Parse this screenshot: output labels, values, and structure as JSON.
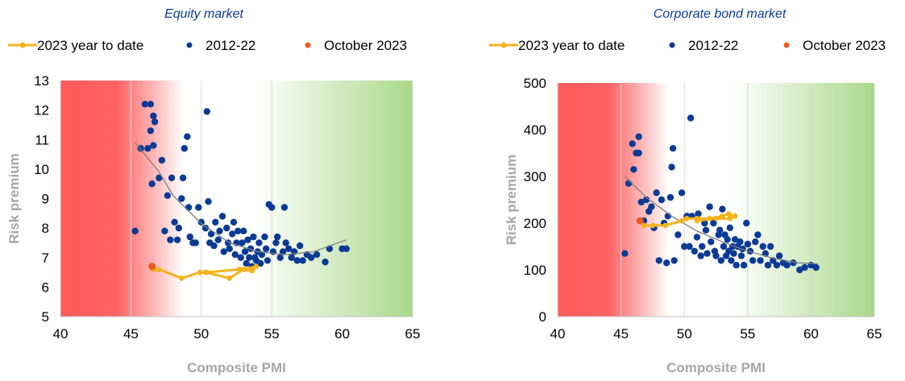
{
  "colors": {
    "ytd_line": "#f5b21c",
    "scatter": "#0b3a96",
    "october": "#ef5a1f",
    "trend": "#7f7f7f",
    "title": "#0b3a96",
    "axis_text": "#000000",
    "axis_title": "#a6a6a6",
    "grid": "#d9d9d9",
    "bg_red": "#ff5a5a",
    "bg_green": "#a9d88a"
  },
  "chart_data": [
    {
      "type": "scatter",
      "title": "Equity market",
      "xlabel": "Composite PMI",
      "ylabel": "Risk premium",
      "xlim": [
        40,
        65
      ],
      "ylim": [
        5,
        13
      ],
      "xticks": [
        "40",
        "45",
        "50",
        "55",
        "60",
        "65"
      ],
      "yticks": [
        "5",
        "6",
        "7",
        "8",
        "9",
        "10",
        "11",
        "12",
        "13"
      ],
      "legend_position": "top",
      "legend": [
        {
          "label": "2023 year to date",
          "kind": "line-marker",
          "color": "#f5b21c"
        },
        {
          "label": "2012-22",
          "kind": "marker",
          "color": "#0b3a96"
        },
        {
          "label": "October 2023",
          "kind": "marker",
          "color": "#ef5a1f"
        }
      ],
      "series": [
        {
          "name": "2012-22",
          "kind": "scatter",
          "points": [
            [
              45.3,
              7.9
            ],
            [
              45.7,
              10.7
            ],
            [
              46.0,
              12.2
            ],
            [
              46.2,
              10.7
            ],
            [
              46.4,
              12.2
            ],
            [
              46.4,
              11.3
            ],
            [
              46.6,
              11.8
            ],
            [
              46.7,
              11.6
            ],
            [
              46.5,
              9.5
            ],
            [
              46.6,
              10.8
            ],
            [
              47.0,
              9.7
            ],
            [
              47.2,
              10.3
            ],
            [
              47.4,
              7.9
            ],
            [
              47.6,
              9.1
            ],
            [
              47.8,
              7.6
            ],
            [
              47.9,
              9.7
            ],
            [
              48.1,
              8.2
            ],
            [
              48.3,
              7.6
            ],
            [
              48.4,
              8.0
            ],
            [
              48.6,
              9.0
            ],
            [
              48.8,
              10.7
            ],
            [
              48.7,
              9.7
            ],
            [
              49.0,
              11.1
            ],
            [
              49.1,
              8.7
            ],
            [
              49.2,
              7.7
            ],
            [
              49.4,
              7.5
            ],
            [
              49.6,
              7.5
            ],
            [
              49.8,
              8.7
            ],
            [
              50.0,
              8.2
            ],
            [
              50.3,
              8.0
            ],
            [
              50.4,
              11.95
            ],
            [
              50.5,
              8.9
            ],
            [
              50.6,
              7.5
            ],
            [
              50.7,
              7.8
            ],
            [
              50.9,
              7.4
            ],
            [
              51.0,
              8.2
            ],
            [
              51.2,
              7.6
            ],
            [
              51.3,
              7.9
            ],
            [
              51.5,
              8.4
            ],
            [
              51.6,
              7.2
            ],
            [
              51.8,
              8.0
            ],
            [
              51.9,
              7.5
            ],
            [
              52.0,
              7.3
            ],
            [
              52.2,
              7.8
            ],
            [
              52.3,
              8.2
            ],
            [
              52.4,
              7.1
            ],
            [
              52.5,
              7.5
            ],
            [
              52.6,
              7.9
            ],
            [
              52.8,
              7.0
            ],
            [
              52.9,
              7.5
            ],
            [
              53.0,
              7.9
            ],
            [
              53.1,
              7.2
            ],
            [
              53.2,
              6.8
            ],
            [
              53.3,
              7.6
            ],
            [
              53.4,
              7.0
            ],
            [
              53.5,
              7.3
            ],
            [
              53.6,
              6.7
            ],
            [
              53.7,
              7.7
            ],
            [
              53.8,
              7.0
            ],
            [
              53.9,
              6.9
            ],
            [
              54.0,
              7.2
            ],
            [
              54.1,
              7.5
            ],
            [
              54.2,
              6.8
            ],
            [
              54.3,
              7.1
            ],
            [
              54.5,
              7.7
            ],
            [
              54.6,
              7.3
            ],
            [
              54.7,
              6.9
            ],
            [
              54.8,
              8.8
            ],
            [
              55.0,
              8.7
            ],
            [
              55.1,
              7.2
            ],
            [
              55.3,
              7.5
            ],
            [
              55.4,
              7.7
            ],
            [
              55.6,
              7.0
            ],
            [
              55.8,
              7.2
            ],
            [
              55.9,
              8.7
            ],
            [
              56.0,
              7.5
            ],
            [
              56.2,
              7.3
            ],
            [
              56.4,
              7.0
            ],
            [
              56.6,
              7.2
            ],
            [
              56.8,
              6.9
            ],
            [
              57.0,
              7.4
            ],
            [
              57.2,
              6.9
            ],
            [
              57.5,
              7.1
            ],
            [
              57.8,
              7.0
            ],
            [
              58.2,
              7.1
            ],
            [
              58.8,
              6.85
            ],
            [
              59.1,
              7.3
            ],
            [
              60.0,
              7.3
            ],
            [
              60.3,
              7.3
            ]
          ]
        },
        {
          "name": "2023 year to date",
          "kind": "line",
          "points": [
            [
              46.6,
              6.6
            ],
            [
              47.0,
              6.6
            ],
            [
              48.6,
              6.3
            ],
            [
              49.9,
              6.5
            ],
            [
              50.3,
              6.5
            ],
            [
              52.0,
              6.3
            ],
            [
              53.0,
              6.6
            ],
            [
              53.9,
              6.7
            ],
            [
              53.6,
              6.55
            ],
            [
              52.7,
              6.6
            ],
            [
              50.4,
              6.5
            ]
          ]
        },
        {
          "name": "October 2023",
          "kind": "scatter",
          "points": [
            [
              46.5,
              6.7
            ]
          ]
        },
        {
          "name": "trend",
          "kind": "trend",
          "points": [
            [
              45.3,
              10.9
            ],
            [
              47.0,
              9.9
            ],
            [
              48.0,
              9.1
            ],
            [
              50.0,
              8.15
            ],
            [
              52.0,
              7.5
            ],
            [
              54.0,
              7.2
            ],
            [
              56.0,
              7.1
            ],
            [
              58.0,
              7.2
            ],
            [
              60.3,
              7.6
            ]
          ]
        }
      ]
    },
    {
      "type": "scatter",
      "title": "Corporate bond market",
      "xlabel": "Composite PMI",
      "ylabel": "Risk premium",
      "xlim": [
        40,
        65
      ],
      "ylim": [
        0,
        500
      ],
      "xticks": [
        "40",
        "45",
        "50",
        "55",
        "60",
        "65"
      ],
      "yticks": [
        "0",
        "100",
        "200",
        "300",
        "400",
        "500"
      ],
      "legend_position": "top",
      "legend": [
        {
          "label": "2023 year to date",
          "kind": "line-marker",
          "color": "#f5b21c"
        },
        {
          "label": "2012-22",
          "kind": "marker",
          "color": "#0b3a96"
        },
        {
          "label": "October 2023",
          "kind": "marker",
          "color": "#ef5a1f"
        }
      ],
      "series": [
        {
          "name": "2012-22",
          "kind": "scatter",
          "points": [
            [
              45.3,
              135
            ],
            [
              45.6,
              285
            ],
            [
              45.9,
              370
            ],
            [
              46.0,
              315
            ],
            [
              46.2,
              350
            ],
            [
              46.4,
              385
            ],
            [
              46.4,
              350
            ],
            [
              46.6,
              245
            ],
            [
              46.8,
              205
            ],
            [
              47.0,
              250
            ],
            [
              47.2,
              225
            ],
            [
              47.4,
              235
            ],
            [
              47.6,
              190
            ],
            [
              47.8,
              265
            ],
            [
              48.0,
              120
            ],
            [
              48.2,
              250
            ],
            [
              48.4,
              200
            ],
            [
              48.6,
              115
            ],
            [
              48.7,
              215
            ],
            [
              48.9,
              255
            ],
            [
              49.0,
              320
            ],
            [
              49.1,
              360
            ],
            [
              49.2,
              120
            ],
            [
              49.5,
              175
            ],
            [
              49.8,
              265
            ],
            [
              50.0,
              150
            ],
            [
              50.2,
              215
            ],
            [
              50.4,
              150
            ],
            [
              50.5,
              425
            ],
            [
              50.6,
              215
            ],
            [
              50.8,
              140
            ],
            [
              51.0,
              170
            ],
            [
              51.1,
              220
            ],
            [
              51.3,
              130
            ],
            [
              51.4,
              150
            ],
            [
              51.6,
              200
            ],
            [
              51.7,
              185
            ],
            [
              51.8,
              135
            ],
            [
              52.0,
              235
            ],
            [
              52.1,
              160
            ],
            [
              52.3,
              200
            ],
            [
              52.4,
              140
            ],
            [
              52.5,
              130
            ],
            [
              52.7,
              175
            ],
            [
              52.8,
              185
            ],
            [
              52.9,
              120
            ],
            [
              53.0,
              230
            ],
            [
              53.1,
              150
            ],
            [
              53.2,
              175
            ],
            [
              53.3,
              130
            ],
            [
              53.4,
              165
            ],
            [
              53.5,
              140
            ],
            [
              53.6,
              190
            ],
            [
              53.7,
              120
            ],
            [
              53.8,
              150
            ],
            [
              53.9,
              135
            ],
            [
              54.0,
              165
            ],
            [
              54.1,
              110
            ],
            [
              54.2,
              150
            ],
            [
              54.4,
              160
            ],
            [
              54.5,
              130
            ],
            [
              54.6,
              145
            ],
            [
              54.7,
              110
            ],
            [
              54.9,
              200
            ],
            [
              55.0,
              155
            ],
            [
              55.2,
              140
            ],
            [
              55.4,
              120
            ],
            [
              55.6,
              160
            ],
            [
              55.8,
              175
            ],
            [
              56.0,
              120
            ],
            [
              56.2,
              150
            ],
            [
              56.4,
              135
            ],
            [
              56.6,
              110
            ],
            [
              56.8,
              150
            ],
            [
              57.0,
              120
            ],
            [
              57.3,
              110
            ],
            [
              57.5,
              130
            ],
            [
              57.8,
              115
            ],
            [
              58.1,
              110
            ],
            [
              58.6,
              115
            ],
            [
              59.1,
              100
            ],
            [
              59.5,
              105
            ],
            [
              60.0,
              110
            ],
            [
              60.4,
              105
            ]
          ]
        },
        {
          "name": "2023 year to date",
          "kind": "line",
          "points": [
            [
              46.8,
              195
            ],
            [
              47.5,
              195
            ],
            [
              48.5,
              195
            ],
            [
              49.8,
              205
            ],
            [
              50.2,
              210
            ],
            [
              51.0,
              210
            ],
            [
              52.0,
              210
            ],
            [
              53.0,
              215
            ],
            [
              53.5,
              220
            ],
            [
              54.0,
              215
            ],
            [
              53.6,
              210
            ],
            [
              52.5,
              210
            ],
            [
              51.0,
              205
            ]
          ]
        },
        {
          "name": "October 2023",
          "kind": "scatter",
          "points": [
            [
              46.5,
              205
            ]
          ]
        },
        {
          "name": "trend",
          "kind": "trend",
          "points": [
            [
              45.3,
              300
            ],
            [
              47.0,
              255
            ],
            [
              49.0,
              215
            ],
            [
              51.0,
              183
            ],
            [
              53.0,
              160
            ],
            [
              55.0,
              140
            ],
            [
              57.0,
              125
            ],
            [
              59.0,
              115
            ],
            [
              60.5,
              113
            ]
          ]
        }
      ]
    }
  ]
}
